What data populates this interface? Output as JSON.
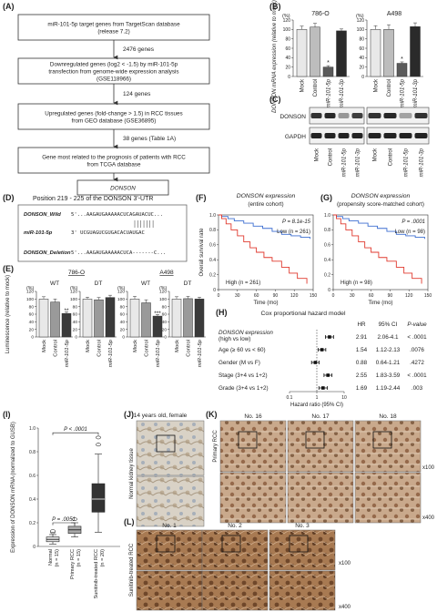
{
  "panels": {
    "A": {
      "label": "(A)",
      "boxes": [
        "miR-101-5p target genes from TargetScan database (release 7.2)",
        "Downregulated genes (log2 < -1.5) by miR-101-5p transfection from genome-wide expression analysis (GSE118966)",
        "Upregulated genes (fold-change > 1.5) in RCC tissues from GEO database (GSE36895)",
        "Gene most related to the prognosis of patients with RCC from TCGA database",
        "DONSON"
      ],
      "counts": [
        "2476 genes",
        "124 genes",
        "38 genes (Table 1A)"
      ]
    },
    "B": {
      "label": "(B)",
      "ylabel": "DONSON mRNA expression (relative to mock)",
      "unit": "(%)",
      "yticks": [
        "0",
        "20",
        "40",
        "60",
        "80",
        "100",
        "120"
      ],
      "groups": [
        {
          "name": "786-O",
          "values": [
            100,
            105,
            20,
            97
          ],
          "errors": [
            7,
            8,
            3,
            4
          ],
          "stars": [
            "",
            "",
            "*",
            ""
          ]
        },
        {
          "name": "A498",
          "values": [
            100,
            100,
            28,
            106
          ],
          "errors": [
            8,
            10,
            3,
            8
          ],
          "stars": [
            "",
            "",
            "*",
            ""
          ]
        }
      ],
      "categories": [
        "Mock",
        "Control",
        "miR-101-5p",
        "miR-101-3p"
      ],
      "colors": [
        "#e8e8e8",
        "#bdbdbd",
        "#5a5a5a",
        "#2a2a2a"
      ]
    },
    "C": {
      "label": "(C)",
      "rows": [
        "DONSON",
        "GAPDH"
      ],
      "categories": [
        "Mock",
        "Control",
        "miR-101-5p",
        "miR-101-3p"
      ]
    },
    "D": {
      "label": "(D)",
      "title": "Position 219 - 225 of the DONSON 3'-UTR",
      "rows": [
        {
          "name": "DONSON_Wild",
          "seq": "5'...AAGAUGAAAAACUCAGAUACUC..."
        },
        {
          "name": "miR-101-5p",
          "seq": "3'   UCGUAGUCGUGACACUAUGAC"
        },
        {
          "name": "DONSON_Deletion",
          "seq": "5'...AAGAUGAAAAACUCA-------C..."
        }
      ]
    },
    "E": {
      "label": "(E)",
      "ylabel": "Luminescence (relative to mock)",
      "unit": "(%)",
      "yticks": [
        "0",
        "20",
        "40",
        "60",
        "80",
        "100",
        "120"
      ],
      "groups": [
        {
          "name": "786-O",
          "sub": "WT",
          "values": [
            100,
            92,
            62
          ],
          "errors": [
            6,
            8,
            4
          ],
          "stars": [
            "",
            "",
            "**"
          ]
        },
        {
          "name": "",
          "sub": "DT",
          "values": [
            100,
            98,
            104
          ],
          "errors": [
            5,
            6,
            6
          ],
          "stars": [
            "",
            "",
            ""
          ]
        },
        {
          "name": "A498",
          "sub": "WT",
          "values": [
            100,
            90,
            55
          ],
          "errors": [
            7,
            8,
            4
          ],
          "stars": [
            "",
            "",
            "***"
          ]
        },
        {
          "name": "",
          "sub": "DT",
          "values": [
            100,
            101,
            100
          ],
          "errors": [
            6,
            6,
            5
          ],
          "stars": [
            "",
            "",
            ""
          ]
        }
      ],
      "categories": [
        "Mock",
        "Control",
        "miR-101-5p"
      ],
      "colors": [
        "#e8e8e8",
        "#9a9a9a",
        "#3a3a3a"
      ]
    },
    "F": {
      "label": "(F)",
      "title": "DONSON expression",
      "subtitle": "(entire cohort)",
      "pvalue": "P = 8.1e-15",
      "low": "Low (n = 261)",
      "high": "High (n = 261)",
      "xlabel": "Time (mo)",
      "ylabel": "Overall survival rate",
      "xticks": [
        "0",
        "30",
        "60",
        "90",
        "120",
        "150"
      ],
      "yticks": [
        "0",
        "0.2",
        "0.4",
        "0.6",
        "0.8",
        "1.0"
      ]
    },
    "G": {
      "label": "(G)",
      "title": "DONSON expression",
      "subtitle": "(propensity score-matched cohort)",
      "pvalue": "P = .0001",
      "low": "Low (n = 98)",
      "high": "High (n = 98)",
      "xlabel": "Time (mo)",
      "xticks": [
        "0",
        "30",
        "60",
        "90",
        "120",
        "150"
      ],
      "yticks": [
        "0",
        "0.2",
        "0.4",
        "0.6",
        "0.8",
        "1.0"
      ]
    },
    "H": {
      "label": "(H)",
      "title": "Cox proportional hazard model",
      "headers": [
        "HR",
        "95% CI",
        "P-value"
      ],
      "rows": [
        {
          "name": "DONSON expression (high vs low)",
          "hr": "2.91",
          "ci": "2.06-4.1",
          "p": "< .0001",
          "v": 2.91,
          "lo": 2.06,
          "hi": 4.1
        },
        {
          "name": "Age (≥ 60 vs < 60)",
          "hr": "1.54",
          "ci": "1.12-2.13",
          "p": ".0076",
          "v": 1.54,
          "lo": 1.12,
          "hi": 2.13
        },
        {
          "name": "Gender (M vs F)",
          "hr": "0.88",
          "ci": "0.64-1.21",
          "p": ".4272",
          "v": 0.88,
          "lo": 0.64,
          "hi": 1.21
        },
        {
          "name": "Stage (3+4 vs 1+2)",
          "hr": "2.55",
          "ci": "1.83-3.59",
          "p": "< .0001",
          "v": 2.55,
          "lo": 1.83,
          "hi": 3.59
        },
        {
          "name": "Grade (3+4 vs 1+2)",
          "hr": "1.69",
          "ci": "1.19-2.44",
          "p": ".003",
          "v": 1.69,
          "lo": 1.19,
          "hi": 2.44
        }
      ],
      "xticks": [
        "0.1",
        "1",
        "10"
      ],
      "xlabel": "Hazard ratio (95% CI)"
    },
    "I": {
      "label": "(I)",
      "ylabel": "Expression of DONSON mRNA (normalized to GUSB)",
      "yticks": [
        "0",
        "0.2",
        "0.4",
        "0.6",
        "0.8",
        "1.0"
      ],
      "categories": [
        "Normal (n = 15)",
        "Primary RCC (n = 15)",
        "Sunitinib-treated RCC (n = 20)"
      ],
      "p1": "P = .0051",
      "p2": "P < .0001",
      "boxes": [
        {
          "min": 0.02,
          "q1": 0.04,
          "med": 0.06,
          "q3": 0.08,
          "max": 0.1,
          "out": [
            0.12,
            0.13
          ]
        },
        {
          "min": 0.08,
          "q1": 0.11,
          "med": 0.14,
          "q3": 0.17,
          "max": 0.2,
          "out": [
            0.23
          ]
        },
        {
          "min": 0.12,
          "q1": 0.29,
          "med": 0.4,
          "q3": 0.53,
          "max": 0.78,
          "out": [
            0.86,
            0.92
          ]
        }
      ]
    },
    "J": {
      "label": "(J)",
      "title": "14 years old, female",
      "side": "Normal kidney tissue"
    },
    "K": {
      "label": "(K)",
      "cols": [
        "No. 16",
        "No. 17",
        "No. 18"
      ],
      "side": "Primary RCC",
      "mag1": "x100",
      "mag2": "x400"
    },
    "L": {
      "label": "(L)",
      "cols": [
        "No. 1",
        "No. 2",
        "No. 3"
      ],
      "side": "Sunitinib-treated RCC",
      "mag1": "x100",
      "mag2": "x400"
    }
  }
}
